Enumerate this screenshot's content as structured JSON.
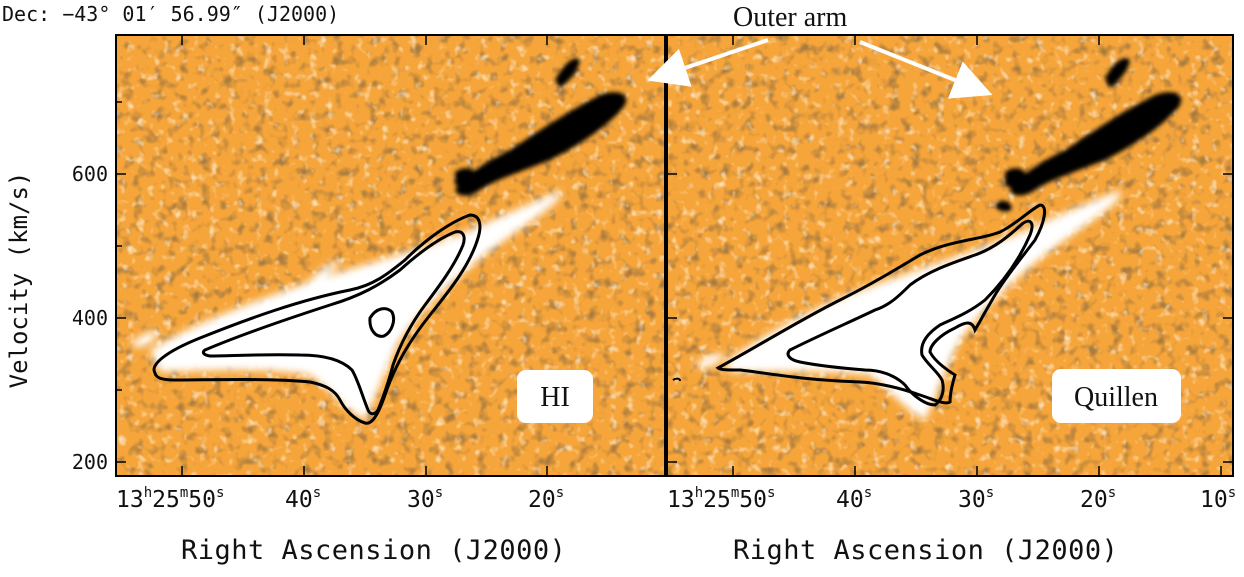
{
  "figure": {
    "header": "Dec: −43° 01′ 56.99″ (J2000)",
    "annotation": "Outer arm",
    "ylabel": "Velocity (km/s)",
    "xlabel": "Right Ascension (J2000)",
    "y_ticks": [
      "200",
      "400",
      "600"
    ],
    "colors": {
      "background": "#f6a53a",
      "emission": "#ffffff",
      "absorption": "#000000",
      "contour": "#000000"
    },
    "panels": [
      {
        "label": "HI",
        "x_ticks": [
          {
            "h": "13",
            "m": "25",
            "s": "50"
          },
          {
            "s": "40"
          },
          {
            "s": "30"
          },
          {
            "s": "20"
          }
        ]
      },
      {
        "label": "Quillen",
        "x_ticks": [
          {
            "h": "13",
            "m": "25",
            "s": "50"
          },
          {
            "s": "40"
          },
          {
            "s": "30"
          },
          {
            "s": "20"
          },
          {
            "s": "10"
          }
        ]
      }
    ]
  }
}
